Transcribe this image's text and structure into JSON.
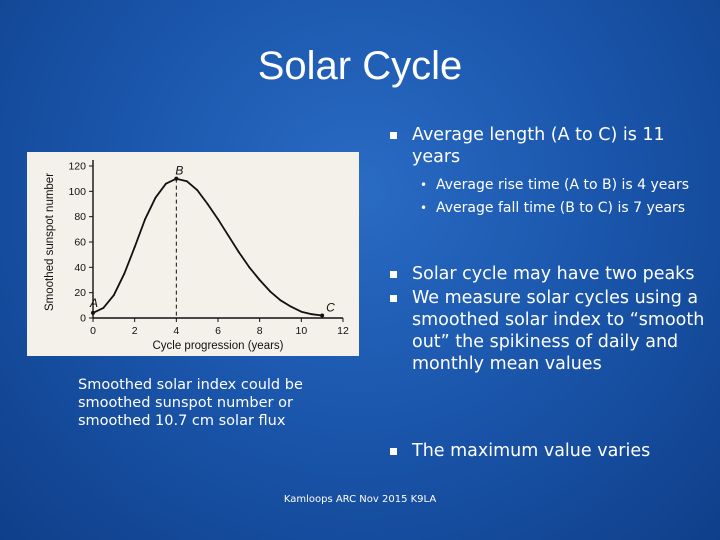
{
  "slide": {
    "title": "Solar Cycle",
    "caption": "Smoothed solar index could be smoothed sunspot number or smoothed 10.7 cm solar flux",
    "footer": "Kamloops ARC Nov 2015 K9LA"
  },
  "bullets": {
    "b1": "Average length (A to C) is 11 years",
    "sub": [
      "Average rise time (A to B) is 4 years",
      "Average fall time (B to C) is 7 years"
    ],
    "b2": "Solar cycle may have two peaks",
    "b3": "We measure solar cycles using a smoothed solar index to “smooth out” the spikiness of daily and monthly mean values",
    "b4": "The maximum value varies"
  },
  "chart_data": {
    "type": "line",
    "xlabel": "Cycle progression (years)",
    "ylabel": "Smoothed sunspot number",
    "xlim": [
      0,
      12
    ],
    "ylim": [
      0,
      120
    ],
    "xticks": [
      0,
      2,
      4,
      6,
      8,
      10,
      12
    ],
    "yticks": [
      0,
      20,
      40,
      60,
      80,
      100,
      120
    ],
    "x": [
      0,
      0.5,
      1,
      1.5,
      2,
      2.5,
      3,
      3.5,
      4,
      4.5,
      5,
      5.5,
      6,
      6.5,
      7,
      7.5,
      8,
      8.5,
      9,
      9.5,
      10,
      10.5,
      11
    ],
    "y": [
      4,
      8,
      18,
      35,
      56,
      78,
      95,
      106,
      110,
      108,
      101,
      90,
      78,
      65,
      52,
      40,
      30,
      21,
      14,
      9,
      5,
      3,
      2
    ],
    "annotations": [
      {
        "label": "A",
        "x": 0,
        "y": 4
      },
      {
        "label": "B",
        "x": 4,
        "y": 110
      },
      {
        "label": "C",
        "x": 11,
        "y": 2
      }
    ],
    "dashed_marker_x": 4,
    "colors": {
      "line": "#111111",
      "background": "#f3f1ea"
    }
  }
}
